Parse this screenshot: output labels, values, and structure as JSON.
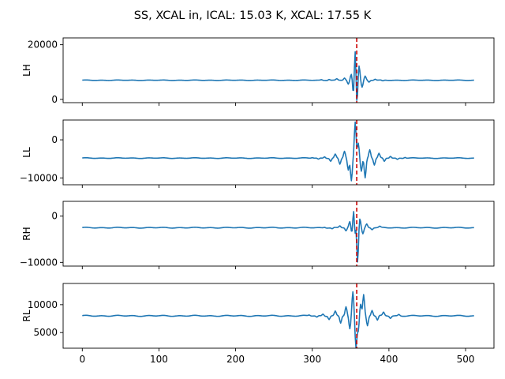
{
  "chart_data": {
    "type": "line",
    "title": "SS, XCAL in, ICAL: 15.03 K, XCAL: 17.55 K",
    "xlim": [
      -25,
      537
    ],
    "x_ticks": [
      0,
      100,
      200,
      300,
      400,
      500
    ],
    "x_tick_labels": [
      "0",
      "100",
      "200",
      "300",
      "400",
      "500"
    ],
    "num_points": 512,
    "line_color": "#1f77b4",
    "marker_color": "#cc0000",
    "marker_x": 358,
    "panels": [
      {
        "ylabel": "LH",
        "ylim": [
          -1200,
          22500
        ],
        "y_ticks": [
          0,
          20000
        ],
        "y_tick_labels": [
          "0",
          "20000"
        ],
        "baseline": 7000,
        "center": 356,
        "burst": [
          {
            "offset": -44,
            "amp": 200
          },
          {
            "offset": -34,
            "amp": 350
          },
          {
            "offset": -24,
            "amp": 500
          },
          {
            "offset": -14,
            "amp": 800
          },
          {
            "offset": -9,
            "amp": -1500
          },
          {
            "offset": -5,
            "amp": 2300
          },
          {
            "offset": -2,
            "amp": -6800
          },
          {
            "offset": 0,
            "amp": 14200
          },
          {
            "offset": 2,
            "amp": -10500
          },
          {
            "offset": 5,
            "amp": 5600
          },
          {
            "offset": 9,
            "amp": -2500
          },
          {
            "offset": 13,
            "amp": 1500
          },
          {
            "offset": 18,
            "amp": -700
          },
          {
            "offset": 26,
            "amp": 400
          },
          {
            "offset": 36,
            "amp": -300
          }
        ]
      },
      {
        "ylabel": "LL",
        "ylim": [
          -11800,
          5200
        ],
        "y_ticks": [
          -10000,
          0
        ],
        "y_tick_labels": [
          "−10000",
          "0"
        ],
        "baseline": -4800,
        "center": 356,
        "burst": [
          {
            "offset": -56,
            "amp": 150
          },
          {
            "offset": -48,
            "amp": -300
          },
          {
            "offset": -40,
            "amp": 400
          },
          {
            "offset": -32,
            "amp": -800
          },
          {
            "offset": -26,
            "amp": 1000
          },
          {
            "offset": -20,
            "amp": -1600
          },
          {
            "offset": -14,
            "amp": 1800
          },
          {
            "offset": -9,
            "amp": -3200
          },
          {
            "offset": -5,
            "amp": -6000
          },
          {
            "offset": 0,
            "amp": 9500
          },
          {
            "offset": 4,
            "amp": 4000
          },
          {
            "offset": 8,
            "amp": -3400
          },
          {
            "offset": 13,
            "amp": -5200
          },
          {
            "offset": 19,
            "amp": 2200
          },
          {
            "offset": 25,
            "amp": -1800
          },
          {
            "offset": 31,
            "amp": 1200
          },
          {
            "offset": 38,
            "amp": -900
          },
          {
            "offset": 46,
            "amp": 500
          },
          {
            "offset": 55,
            "amp": -350
          },
          {
            "offset": 65,
            "amp": 250
          }
        ]
      },
      {
        "ylabel": "RH",
        "ylim": [
          -10800,
          3200
        ],
        "y_ticks": [
          -10000,
          0
        ],
        "y_tick_labels": [
          "−10000",
          "0"
        ],
        "baseline": -2500,
        "center": 356,
        "burst": [
          {
            "offset": -40,
            "amp": 150
          },
          {
            "offset": -30,
            "amp": -250
          },
          {
            "offset": -20,
            "amp": 400
          },
          {
            "offset": -12,
            "amp": -700
          },
          {
            "offset": -7,
            "amp": 1300
          },
          {
            "offset": -4,
            "amp": -1800
          },
          {
            "offset": -2,
            "amp": 4800
          },
          {
            "offset": 0,
            "amp": -5000
          },
          {
            "offset": 1,
            "amp": 4500
          },
          {
            "offset": 3,
            "amp": -8200
          },
          {
            "offset": 6,
            "amp": 2200
          },
          {
            "offset": 10,
            "amp": -1300
          },
          {
            "offset": 15,
            "amp": 800
          },
          {
            "offset": 22,
            "amp": -400
          },
          {
            "offset": 32,
            "amp": 250
          }
        ]
      },
      {
        "ylabel": "RL",
        "ylim": [
          2200,
          13800
        ],
        "y_ticks": [
          5000,
          10000
        ],
        "y_tick_labels": [
          "5000",
          "10000"
        ],
        "baseline": 8000,
        "center": 356,
        "burst": [
          {
            "offset": -60,
            "amp": 150
          },
          {
            "offset": -50,
            "amp": -250
          },
          {
            "offset": -42,
            "amp": 350
          },
          {
            "offset": -34,
            "amp": -600
          },
          {
            "offset": -26,
            "amp": 800
          },
          {
            "offset": -19,
            "amp": -1300
          },
          {
            "offset": -12,
            "amp": 1600
          },
          {
            "offset": -7,
            "amp": -2400
          },
          {
            "offset": -3,
            "amp": 4300
          },
          {
            "offset": 1,
            "amp": -5600
          },
          {
            "offset": 4,
            "amp": -2600
          },
          {
            "offset": 7,
            "amp": 2200
          },
          {
            "offset": 11,
            "amp": 3800
          },
          {
            "offset": 16,
            "amp": -1800
          },
          {
            "offset": 22,
            "amp": 1000
          },
          {
            "offset": 29,
            "amp": -800
          },
          {
            "offset": 37,
            "amp": 600
          },
          {
            "offset": 46,
            "amp": -400
          },
          {
            "offset": 57,
            "amp": 250
          }
        ]
      }
    ]
  }
}
